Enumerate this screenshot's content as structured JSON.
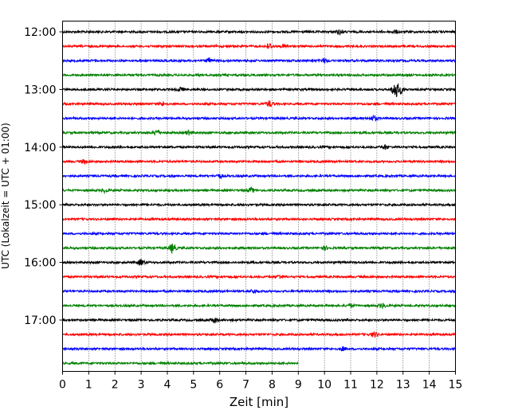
{
  "chart_data": {
    "type": "line",
    "title": "",
    "xlabel": "Zeit  [min]",
    "ylabel": "UTC (Lokalzeit = UTC + 01:00)",
    "xlim": [
      0,
      15
    ],
    "x_ticks": [
      "0",
      "1",
      "2",
      "3",
      "4",
      "5",
      "6",
      "7",
      "8",
      "9",
      "10",
      "11",
      "12",
      "13",
      "14",
      "15"
    ],
    "y_ticks": [
      "12:00",
      "13:00",
      "14:00",
      "15:00",
      "16:00",
      "17:00"
    ],
    "grid": "vertical dotted",
    "trace_colors": [
      "#000000",
      "#ff0000",
      "#0000ff",
      "#008000"
    ],
    "series": [
      {
        "time": "12:00",
        "end": 15,
        "events": [
          [
            10.6,
            2.5
          ],
          [
            12.7,
            1.5
          ]
        ]
      },
      {
        "time": "12:15",
        "end": 15,
        "events": [
          [
            7.9,
            3.0
          ],
          [
            8.5,
            2.0
          ]
        ]
      },
      {
        "time": "12:30",
        "end": 15,
        "events": [
          [
            5.6,
            2.5
          ],
          [
            10.0,
            2.5
          ]
        ]
      },
      {
        "time": "12:45",
        "end": 15,
        "events": []
      },
      {
        "time": "13:00",
        "end": 15,
        "events": [
          [
            4.5,
            2.5
          ],
          [
            12.7,
            10.0
          ],
          [
            12.9,
            4.0
          ]
        ]
      },
      {
        "time": "13:15",
        "end": 15,
        "events": [
          [
            3.8,
            2.0
          ],
          [
            7.9,
            3.5
          ]
        ]
      },
      {
        "time": "13:30",
        "end": 15,
        "events": [
          [
            11.9,
            3.0
          ]
        ]
      },
      {
        "time": "13:45",
        "end": 15,
        "events": [
          [
            3.6,
            3.5
          ],
          [
            4.8,
            2.5
          ]
        ]
      },
      {
        "time": "14:00",
        "end": 15,
        "events": [
          [
            12.3,
            2.5
          ]
        ]
      },
      {
        "time": "14:15",
        "end": 15,
        "events": [
          [
            0.8,
            2.0
          ]
        ]
      },
      {
        "time": "14:30",
        "end": 15,
        "events": [
          [
            6.0,
            2.0
          ]
        ]
      },
      {
        "time": "14:45",
        "end": 15,
        "events": [
          [
            1.6,
            2.0
          ],
          [
            7.2,
            2.5
          ]
        ]
      },
      {
        "time": "15:00",
        "end": 15,
        "events": []
      },
      {
        "time": "15:15",
        "end": 15,
        "events": []
      },
      {
        "time": "15:30",
        "end": 15,
        "events": []
      },
      {
        "time": "15:45",
        "end": 15,
        "events": [
          [
            4.2,
            5.5
          ],
          [
            10.0,
            2.0
          ]
        ]
      },
      {
        "time": "16:00",
        "end": 15,
        "events": [
          [
            3.0,
            3.5
          ]
        ]
      },
      {
        "time": "16:15",
        "end": 15,
        "events": [
          [
            8.3,
            2.0
          ]
        ]
      },
      {
        "time": "16:30",
        "end": 15,
        "events": [
          [
            7.3,
            2.0
          ]
        ]
      },
      {
        "time": "16:45",
        "end": 15,
        "events": [
          [
            11.0,
            2.0
          ],
          [
            12.2,
            2.5
          ]
        ]
      },
      {
        "time": "17:00",
        "end": 15,
        "events": [
          [
            5.8,
            3.0
          ]
        ]
      },
      {
        "time": "17:15",
        "end": 15,
        "events": [
          [
            11.9,
            3.0
          ]
        ]
      },
      {
        "time": "17:30",
        "end": 15,
        "events": [
          [
            10.7,
            2.0
          ]
        ]
      },
      {
        "time": "17:45",
        "end": 9,
        "events": []
      }
    ]
  }
}
